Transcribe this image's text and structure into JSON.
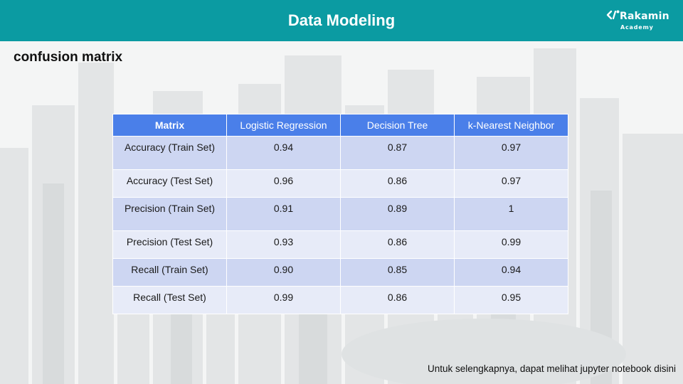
{
  "header": {
    "title": "Data Modeling",
    "logo_name": "Rakamin",
    "logo_sub": "Academy"
  },
  "section_heading": "confusion matrix",
  "table": {
    "columns": [
      "Matrix",
      "Logistic Regression",
      "Decision Tree",
      "k-Nearest Neighbor"
    ],
    "rows": [
      [
        "Accuracy (Train Set)",
        "0.94",
        "0.87",
        "0.97"
      ],
      [
        "Accuracy (Test Set)",
        "0.96",
        "0.86",
        "0.97"
      ],
      [
        "Precision (Train Set)",
        "0.91",
        "0.89",
        "1"
      ],
      [
        "Precision (Test Set)",
        "0.93",
        "0.86",
        "0.99"
      ],
      [
        "Recall (Train Set)",
        "0.90",
        "0.85",
        "0.94"
      ],
      [
        "Recall (Test Set)",
        "0.99",
        "0.86",
        "0.95"
      ]
    ]
  },
  "footer_note": "Untuk selengkapnya, dapat melihat jupyter notebook disini",
  "colors": {
    "header_bg": "#0b9ba2",
    "table_header_bg": "#4a7fe9",
    "row_odd_bg": "#cdd6f2",
    "row_even_bg": "#e7ebf8"
  }
}
